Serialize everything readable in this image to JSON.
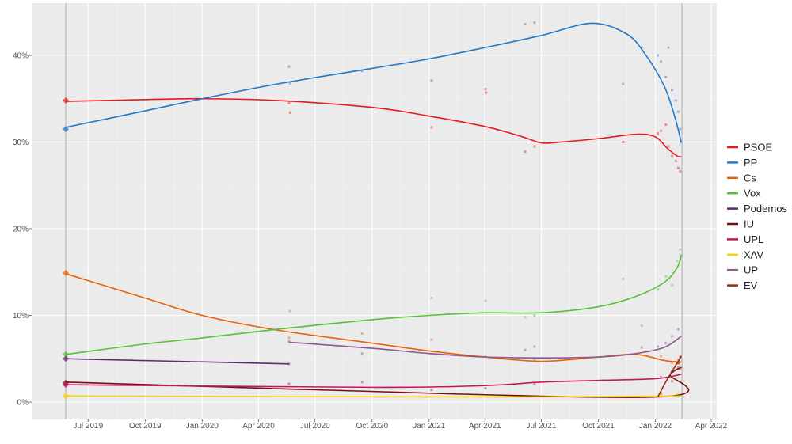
{
  "chart_data": {
    "type": "line",
    "title": "",
    "xlabel": "",
    "ylabel": "",
    "ylim": [
      0,
      45
    ],
    "xlim": [
      "2019-04-01",
      "2022-04-10"
    ],
    "x_ticks": [
      {
        "date": "2019-07-01",
        "label": "Jul 2019"
      },
      {
        "date": "2019-10-01",
        "label": "Oct 2019"
      },
      {
        "date": "2020-01-01",
        "label": "Jan 2020"
      },
      {
        "date": "2020-04-01",
        "label": "Apr 2020"
      },
      {
        "date": "2020-07-01",
        "label": "Jul 2020"
      },
      {
        "date": "2020-10-01",
        "label": "Oct 2020"
      },
      {
        "date": "2021-01-01",
        "label": "Jan 2021"
      },
      {
        "date": "2021-04-01",
        "label": "Apr 2021"
      },
      {
        "date": "2021-07-01",
        "label": "Jul 2021"
      },
      {
        "date": "2021-10-01",
        "label": "Oct 2021"
      },
      {
        "date": "2022-01-01",
        "label": "Jan 2022"
      },
      {
        "date": "2022-04-01",
        "label": "Apr 2022"
      }
    ],
    "y_ticks": [
      {
        "value": 0,
        "label": "0%"
      },
      {
        "value": 10,
        "label": "10%"
      },
      {
        "value": 20,
        "label": "20%"
      },
      {
        "value": 30,
        "label": "30%"
      },
      {
        "value": 40,
        "label": "40%"
      }
    ],
    "reference_lines": [
      "2019-05-26",
      "2022-02-13"
    ],
    "grid": true,
    "legend_position": "right",
    "series": [
      {
        "name": "PSOE",
        "color": "#e41a1c",
        "election_result": 34.8,
        "trend": [
          [
            "2019-05-26",
            34.7
          ],
          [
            "2019-10-01",
            34.9
          ],
          [
            "2020-01-01",
            35.0
          ],
          [
            "2020-05-01",
            34.8
          ],
          [
            "2020-10-01",
            34.0
          ],
          [
            "2021-01-01",
            33.0
          ],
          [
            "2021-04-01",
            31.8
          ],
          [
            "2021-06-01",
            30.6
          ],
          [
            "2021-07-01",
            29.9
          ],
          [
            "2021-08-01",
            30.0
          ],
          [
            "2021-10-01",
            30.4
          ],
          [
            "2021-12-01",
            30.9
          ],
          [
            "2022-01-01",
            30.6
          ],
          [
            "2022-01-20",
            29.3
          ],
          [
            "2022-02-05",
            28.4
          ],
          [
            "2022-02-12",
            28.3
          ]
        ],
        "polls": [
          [
            "2020-05-20",
            34.5
          ],
          [
            "2020-05-22",
            33.4
          ],
          [
            "2021-01-05",
            31.7
          ],
          [
            "2021-04-02",
            36.1
          ],
          [
            "2021-04-03",
            35.7
          ],
          [
            "2021-06-05",
            28.9
          ],
          [
            "2021-06-20",
            29.5
          ],
          [
            "2021-11-10",
            30.0
          ],
          [
            "2022-01-05",
            31.0
          ],
          [
            "2022-01-10",
            31.3
          ],
          [
            "2022-01-18",
            32.0
          ],
          [
            "2022-01-22",
            29.5
          ],
          [
            "2022-01-28",
            28.4
          ],
          [
            "2022-02-03",
            27.8
          ],
          [
            "2022-02-07",
            27.0
          ],
          [
            "2022-02-10",
            26.6
          ]
        ]
      },
      {
        "name": "PP",
        "color": "#1f78c8",
        "election_result": 31.5,
        "trend": [
          [
            "2019-05-26",
            31.7
          ],
          [
            "2019-10-01",
            33.6
          ],
          [
            "2020-01-01",
            35.0
          ],
          [
            "2020-05-01",
            36.7
          ],
          [
            "2020-10-01",
            38.5
          ],
          [
            "2021-01-01",
            39.6
          ],
          [
            "2021-04-01",
            40.9
          ],
          [
            "2021-07-01",
            42.3
          ],
          [
            "2021-09-20",
            43.7
          ],
          [
            "2021-11-15",
            42.5
          ],
          [
            "2021-12-15",
            40.2
          ],
          [
            "2022-01-15",
            36.5
          ],
          [
            "2022-02-01",
            33.0
          ],
          [
            "2022-02-12",
            29.9
          ]
        ],
        "polls": [
          [
            "2020-05-20",
            38.7
          ],
          [
            "2020-05-22",
            36.8
          ],
          [
            "2020-09-15",
            38.2
          ],
          [
            "2021-01-05",
            37.1
          ],
          [
            "2021-06-05",
            43.6
          ],
          [
            "2021-06-20",
            43.8
          ],
          [
            "2021-11-10",
            36.7
          ],
          [
            "2021-12-10",
            40.9
          ],
          [
            "2022-01-05",
            40.0
          ],
          [
            "2022-01-10",
            39.3
          ],
          [
            "2022-01-18",
            37.5
          ],
          [
            "2022-01-22",
            40.9
          ],
          [
            "2022-01-28",
            36.0
          ],
          [
            "2022-02-03",
            34.8
          ],
          [
            "2022-02-07",
            33.5
          ],
          [
            "2022-02-10",
            31.5
          ]
        ]
      },
      {
        "name": "Cs",
        "color": "#eb6109",
        "election_result": 14.9,
        "trend": [
          [
            "2019-05-26",
            14.8
          ],
          [
            "2019-10-01",
            12.0
          ],
          [
            "2020-01-01",
            10.0
          ],
          [
            "2020-05-01",
            8.3
          ],
          [
            "2020-10-01",
            6.8
          ],
          [
            "2021-01-01",
            5.9
          ],
          [
            "2021-04-01",
            5.2
          ],
          [
            "2021-07-01",
            4.7
          ],
          [
            "2021-10-01",
            5.2
          ],
          [
            "2021-12-01",
            5.5
          ],
          [
            "2022-01-15",
            4.8
          ],
          [
            "2022-02-12",
            4.6
          ]
        ],
        "polls": [
          [
            "2020-05-20",
            7.4
          ],
          [
            "2020-09-15",
            7.9
          ],
          [
            "2021-01-05",
            7.2
          ],
          [
            "2021-04-02",
            5.3
          ],
          [
            "2021-06-20",
            4.8
          ],
          [
            "2022-01-10",
            5.3
          ],
          [
            "2022-01-28",
            4.5
          ],
          [
            "2022-02-07",
            4.9
          ],
          [
            "2022-02-10",
            3.8
          ]
        ]
      },
      {
        "name": "Vox",
        "color": "#5ac035",
        "election_result": 5.5,
        "trend": [
          [
            "2019-05-26",
            5.5
          ],
          [
            "2019-10-01",
            6.7
          ],
          [
            "2020-01-01",
            7.4
          ],
          [
            "2020-05-01",
            8.4
          ],
          [
            "2020-10-01",
            9.5
          ],
          [
            "2021-01-01",
            10.0
          ],
          [
            "2021-04-01",
            10.3
          ],
          [
            "2021-07-01",
            10.3
          ],
          [
            "2021-10-01",
            11.0
          ],
          [
            "2021-12-01",
            12.2
          ],
          [
            "2022-01-15",
            13.8
          ],
          [
            "2022-02-05",
            15.5
          ],
          [
            "2022-02-12",
            17.0
          ]
        ],
        "polls": [
          [
            "2020-05-22",
            10.5
          ],
          [
            "2021-01-05",
            12.0
          ],
          [
            "2021-04-02",
            11.7
          ],
          [
            "2021-06-05",
            9.8
          ],
          [
            "2021-06-20",
            10.0
          ],
          [
            "2021-11-10",
            14.2
          ],
          [
            "2021-12-10",
            8.8
          ],
          [
            "2022-01-05",
            13.0
          ],
          [
            "2022-01-18",
            14.5
          ],
          [
            "2022-01-28",
            13.5
          ],
          [
            "2022-02-05",
            16.3
          ],
          [
            "2022-02-10",
            17.6
          ]
        ]
      },
      {
        "name": "Podemos",
        "color": "#5b2c6f",
        "election_result": 5.0,
        "trend": [
          [
            "2019-05-26",
            5.0
          ],
          [
            "2020-05-20",
            4.4
          ]
        ],
        "polls": [
          [
            "2020-05-20",
            4.4
          ]
        ]
      },
      {
        "name": "IU",
        "color": "#7a0d0d",
        "election_result": 2.2,
        "trend": [
          [
            "2019-05-26",
            2.3
          ],
          [
            "2020-05-20",
            1.5
          ],
          [
            "2022-01-05",
            0.6
          ],
          [
            "2022-01-25",
            3.2
          ],
          [
            "2022-02-12",
            4.0
          ]
        ],
        "polls": [
          [
            "2022-01-10",
            1.0
          ],
          [
            "2022-01-28",
            3.5
          ],
          [
            "2022-02-07",
            4.5
          ]
        ]
      },
      {
        "name": "UPL",
        "color": "#c0175e",
        "election_result": 2.0,
        "trend": [
          [
            "2019-05-26",
            2.0
          ],
          [
            "2020-10-01",
            1.7
          ],
          [
            "2021-04-01",
            1.9
          ],
          [
            "2021-07-01",
            2.3
          ],
          [
            "2021-10-01",
            2.5
          ],
          [
            "2022-01-01",
            2.7
          ],
          [
            "2022-02-12",
            3.2
          ]
        ],
        "polls": [
          [
            "2020-05-20",
            2.1
          ],
          [
            "2020-09-15",
            2.3
          ],
          [
            "2021-01-05",
            1.4
          ],
          [
            "2021-04-02",
            1.6
          ],
          [
            "2021-06-20",
            2.1
          ],
          [
            "2022-01-10",
            2.9
          ],
          [
            "2022-01-28",
            3.5
          ],
          [
            "2022-02-07",
            4.0
          ]
        ]
      },
      {
        "name": "XAV",
        "color": "#f2d40c",
        "election_result": 0.7,
        "trend": [
          [
            "2019-05-26",
            0.7
          ],
          [
            "2020-10-01",
            0.6
          ],
          [
            "2021-07-01",
            0.6
          ],
          [
            "2022-02-12",
            0.7
          ]
        ],
        "polls": [
          [
            "2021-06-20",
            0.7
          ],
          [
            "2022-01-10",
            0.9
          ],
          [
            "2022-02-07",
            1.1
          ]
        ]
      },
      {
        "name": "UP",
        "color": "#8a5a8c",
        "election_result": null,
        "trend": [
          [
            "2020-05-20",
            6.9
          ],
          [
            "2020-10-01",
            6.2
          ],
          [
            "2021-01-01",
            5.6
          ],
          [
            "2021-04-01",
            5.2
          ],
          [
            "2021-07-01",
            5.1
          ],
          [
            "2021-10-01",
            5.2
          ],
          [
            "2021-12-01",
            5.6
          ],
          [
            "2022-01-15",
            6.3
          ],
          [
            "2022-02-12",
            7.6
          ]
        ],
        "polls": [
          [
            "2020-05-20",
            7.0
          ],
          [
            "2020-09-15",
            5.6
          ],
          [
            "2021-06-05",
            6.0
          ],
          [
            "2021-06-20",
            6.4
          ],
          [
            "2021-12-10",
            6.3
          ],
          [
            "2022-01-05",
            6.4
          ],
          [
            "2022-01-18",
            6.8
          ],
          [
            "2022-01-28",
            7.6
          ],
          [
            "2022-02-07",
            8.4
          ]
        ]
      },
      {
        "name": "EV",
        "color": "#9c2a12",
        "election_result": null,
        "trend": [
          [
            "2022-01-05",
            0.6
          ],
          [
            "2022-01-20",
            2.6
          ],
          [
            "2022-02-12",
            5.3
          ]
        ],
        "polls": [
          [
            "2022-01-28",
            2.4
          ],
          [
            "2022-02-07",
            4.5
          ],
          [
            "2022-02-10",
            5.2
          ]
        ]
      }
    ]
  }
}
